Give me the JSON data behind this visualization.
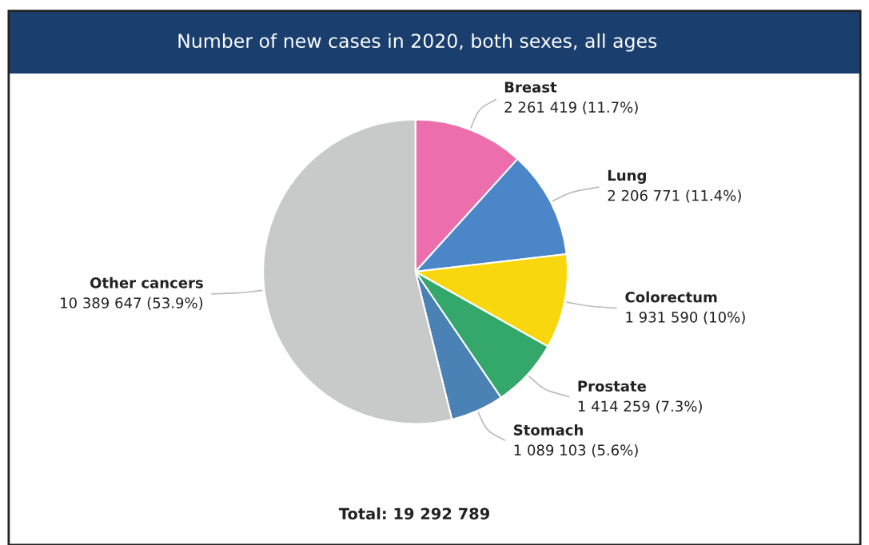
{
  "chart_data": {
    "type": "pie",
    "title": "Number of new cases in 2020, both sexes, all ages",
    "categories": [
      "Breast",
      "Lung",
      "Colorectum",
      "Prostate",
      "Stomach",
      "Other cancers"
    ],
    "values": [
      2261419,
      2206771,
      1931590,
      1414259,
      1089103,
      10389647
    ],
    "colors": [
      "#ec6ead",
      "#4a86c8",
      "#f9d70e",
      "#34a86a",
      "#4a82b5",
      "#c8cac9"
    ],
    "value_labels": [
      "2 261 419 (11.7%)",
      "2 206 771 (11.4%)",
      "1 931 590 (10%)",
      "1 414 259 (7.3%)",
      "1 089 103 (5.6%)",
      "10 389 647 (53.9%)"
    ],
    "annotations": [
      "Total: 19 292 789"
    ]
  }
}
